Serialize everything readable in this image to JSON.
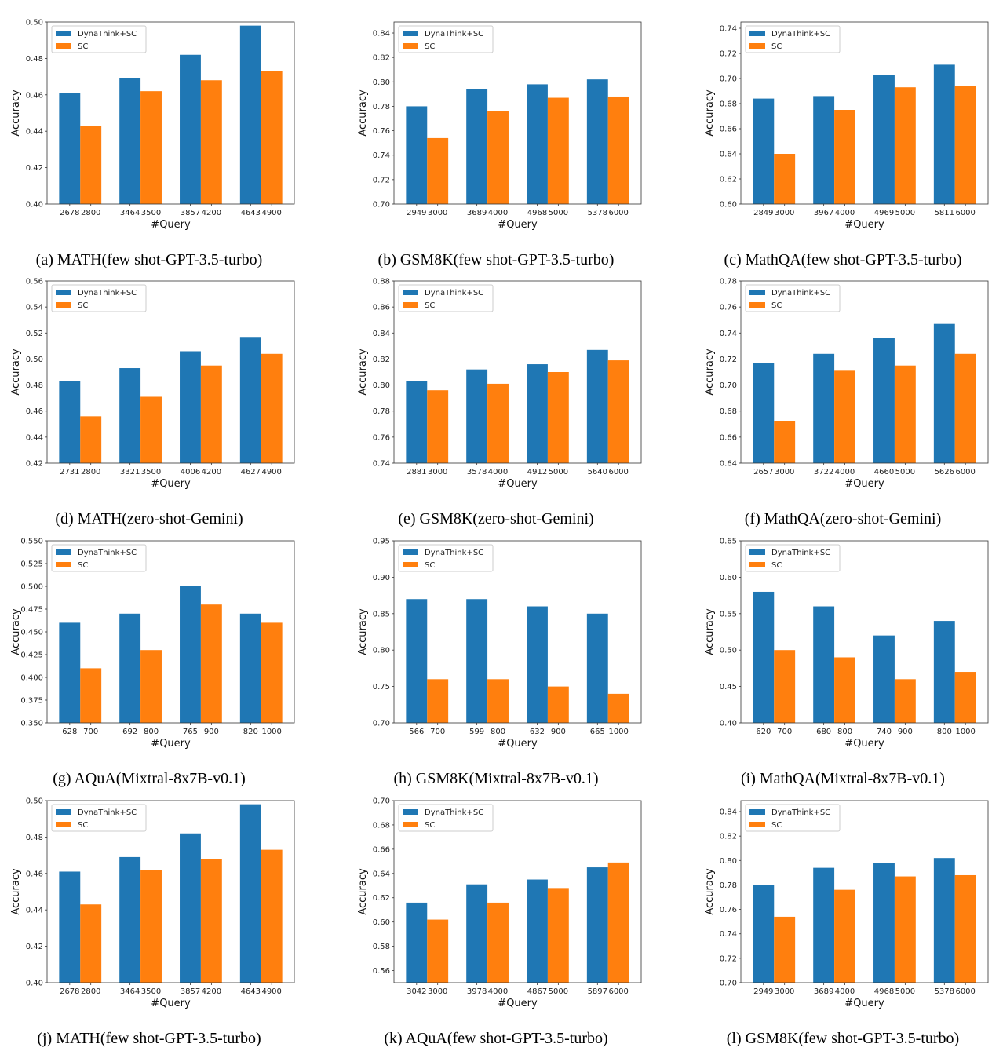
{
  "colors": {
    "dynathink": "#1f77b4",
    "sc": "#ff7f0e"
  },
  "legend": [
    "DynaThink+SC",
    "SC"
  ],
  "chart_data": [
    {
      "type": "bar",
      "title": "(a) MATH(few shot-GPT-3.5-turbo)",
      "xlabel": "#Query",
      "ylabel": "Accuracy",
      "ylim": [
        0.4,
        0.5
      ],
      "yticks": [
        "0.40",
        "0.42",
        "0.44",
        "0.46",
        "0.48",
        "0.50"
      ],
      "xticks": [
        [
          "2678",
          "2800"
        ],
        [
          "3464",
          "3500"
        ],
        [
          "3857",
          "4200"
        ],
        [
          "4643",
          "4900"
        ]
      ],
      "series": [
        {
          "name": "DynaThink+SC",
          "values": [
            0.461,
            0.469,
            0.482,
            0.498
          ]
        },
        {
          "name": "SC",
          "values": [
            0.443,
            0.462,
            0.468,
            0.473
          ]
        }
      ],
      "legend_position": "top-left"
    },
    {
      "type": "bar",
      "title": "(b) GSM8K(few shot-GPT-3.5-turbo)",
      "xlabel": "#Query",
      "ylabel": "Accuracy",
      "ylim": [
        0.7,
        0.849
      ],
      "yticks": [
        "0.70",
        "0.72",
        "0.74",
        "0.76",
        "0.78",
        "0.80",
        "0.82",
        "0.84"
      ],
      "xticks": [
        [
          "2949",
          "3000"
        ],
        [
          "3689",
          "4000"
        ],
        [
          "4968",
          "5000"
        ],
        [
          "5378",
          "6000"
        ]
      ],
      "series": [
        {
          "name": "DynaThink+SC",
          "values": [
            0.78,
            0.794,
            0.798,
            0.802
          ]
        },
        {
          "name": "SC",
          "values": [
            0.754,
            0.776,
            0.787,
            0.788
          ]
        }
      ],
      "legend_position": "top-left"
    },
    {
      "type": "bar",
      "title": "(c) MathQA(few shot-GPT-3.5-turbo)",
      "xlabel": "#Query",
      "ylabel": "Accuracy",
      "ylim": [
        0.6,
        0.745
      ],
      "yticks": [
        "0.60",
        "0.62",
        "0.64",
        "0.66",
        "0.68",
        "0.70",
        "0.72",
        "0.74"
      ],
      "xticks": [
        [
          "2849",
          "3000"
        ],
        [
          "3967",
          "4000"
        ],
        [
          "4969",
          "5000"
        ],
        [
          "5811",
          "6000"
        ]
      ],
      "series": [
        {
          "name": "DynaThink+SC",
          "values": [
            0.684,
            0.686,
            0.703,
            0.711
          ]
        },
        {
          "name": "SC",
          "values": [
            0.64,
            0.675,
            0.693,
            0.694
          ]
        }
      ],
      "legend_position": "top-left"
    },
    {
      "type": "bar",
      "title": "(d) MATH(zero-shot-Gemini)",
      "xlabel": "#Query",
      "ylabel": "Accuracy",
      "ylim": [
        0.42,
        0.56
      ],
      "yticks": [
        "0.42",
        "0.44",
        "0.46",
        "0.48",
        "0.50",
        "0.52",
        "0.54",
        "0.56"
      ],
      "xticks": [
        [
          "2731",
          "2800"
        ],
        [
          "3321",
          "3500"
        ],
        [
          "4006",
          "4200"
        ],
        [
          "4627",
          "4900"
        ]
      ],
      "series": [
        {
          "name": "DynaThink+SC",
          "values": [
            0.483,
            0.493,
            0.506,
            0.517
          ]
        },
        {
          "name": "SC",
          "values": [
            0.456,
            0.471,
            0.495,
            0.504
          ]
        }
      ],
      "legend_position": "top-left"
    },
    {
      "type": "bar",
      "title": "(e) GSM8K(zero-shot-Gemini)",
      "xlabel": "#Query",
      "ylabel": "Accuracy",
      "ylim": [
        0.74,
        0.88
      ],
      "yticks": [
        "0.74",
        "0.76",
        "0.78",
        "0.80",
        "0.82",
        "0.84",
        "0.86",
        "0.88"
      ],
      "xticks": [
        [
          "2881",
          "3000"
        ],
        [
          "3578",
          "4000"
        ],
        [
          "4912",
          "5000"
        ],
        [
          "5640",
          "6000"
        ]
      ],
      "series": [
        {
          "name": "DynaThink+SC",
          "values": [
            0.803,
            0.812,
            0.816,
            0.827
          ]
        },
        {
          "name": "SC",
          "values": [
            0.796,
            0.801,
            0.81,
            0.819
          ]
        }
      ],
      "legend_position": "top-left"
    },
    {
      "type": "bar",
      "title": "(f) MathQA(zero-shot-Gemini)",
      "xlabel": "#Query",
      "ylabel": "Accuracy",
      "ylim": [
        0.64,
        0.78
      ],
      "yticks": [
        "0.64",
        "0.66",
        "0.68",
        "0.70",
        "0.72",
        "0.74",
        "0.76",
        "0.78"
      ],
      "xticks": [
        [
          "2657",
          "3000"
        ],
        [
          "3722",
          "4000"
        ],
        [
          "4660",
          "5000"
        ],
        [
          "5626",
          "6000"
        ]
      ],
      "series": [
        {
          "name": "DynaThink+SC",
          "values": [
            0.717,
            0.724,
            0.736,
            0.747
          ]
        },
        {
          "name": "SC",
          "values": [
            0.672,
            0.711,
            0.715,
            0.724
          ]
        }
      ],
      "legend_position": "top-left"
    },
    {
      "type": "bar",
      "title": "(g) AQuA(Mixtral-8x7B-v0.1)",
      "xlabel": "#Query",
      "ylabel": "Accuracy",
      "ylim": [
        0.35,
        0.55
      ],
      "yticks": [
        "0.350",
        "0.375",
        "0.400",
        "0.425",
        "0.450",
        "0.475",
        "0.500",
        "0.525",
        "0.550"
      ],
      "xticks": [
        [
          "628",
          "700"
        ],
        [
          "692",
          "800"
        ],
        [
          "765",
          "900"
        ],
        [
          "820",
          "1000"
        ]
      ],
      "series": [
        {
          "name": "DynaThink+SC",
          "values": [
            0.46,
            0.47,
            0.5,
            0.47
          ]
        },
        {
          "name": "SC",
          "values": [
            0.41,
            0.43,
            0.48,
            0.46
          ]
        }
      ],
      "legend_position": "top-left"
    },
    {
      "type": "bar",
      "title": "(h) GSM8K(Mixtral-8x7B-v0.1)",
      "xlabel": "#Query",
      "ylabel": "Accuracy",
      "ylim": [
        0.7,
        0.95
      ],
      "yticks": [
        "0.70",
        "0.75",
        "0.80",
        "0.85",
        "0.90",
        "0.95"
      ],
      "xticks": [
        [
          "566",
          "700"
        ],
        [
          "599",
          "800"
        ],
        [
          "632",
          "900"
        ],
        [
          "665",
          "1000"
        ]
      ],
      "series": [
        {
          "name": "DynaThink+SC",
          "values": [
            0.87,
            0.87,
            0.86,
            0.85
          ]
        },
        {
          "name": "SC",
          "values": [
            0.76,
            0.76,
            0.75,
            0.74
          ]
        }
      ],
      "legend_position": "top-left"
    },
    {
      "type": "bar",
      "title": "(i) MathQA(Mixtral-8x7B-v0.1)",
      "xlabel": "#Query",
      "ylabel": "Accuracy",
      "ylim": [
        0.4,
        0.65
      ],
      "yticks": [
        "0.40",
        "0.45",
        "0.50",
        "0.55",
        "0.60",
        "0.65"
      ],
      "xticks": [
        [
          "620",
          "700"
        ],
        [
          "680",
          "800"
        ],
        [
          "740",
          "900"
        ],
        [
          "800",
          "1000"
        ]
      ],
      "series": [
        {
          "name": "DynaThink+SC",
          "values": [
            0.58,
            0.56,
            0.52,
            0.54
          ]
        },
        {
          "name": "SC",
          "values": [
            0.5,
            0.49,
            0.46,
            0.47
          ]
        }
      ],
      "legend_position": "top-left"
    },
    {
      "type": "bar",
      "title": "(j) MATH(few shot-GPT-3.5-turbo)",
      "xlabel": "#Query",
      "ylabel": "Accuracy",
      "ylim": [
        0.4,
        0.5
      ],
      "yticks": [
        "0.40",
        "0.42",
        "0.44",
        "0.46",
        "0.48",
        "0.50"
      ],
      "xticks": [
        [
          "2678",
          "2800"
        ],
        [
          "3464",
          "3500"
        ],
        [
          "3857",
          "4200"
        ],
        [
          "4643",
          "4900"
        ]
      ],
      "series": [
        {
          "name": "DynaThink+SC",
          "values": [
            0.461,
            0.469,
            0.482,
            0.498
          ]
        },
        {
          "name": "SC",
          "values": [
            0.443,
            0.462,
            0.468,
            0.473
          ]
        }
      ],
      "legend_position": "top-left"
    },
    {
      "type": "bar",
      "title": "(k) AQuA(few shot-GPT-3.5-turbo)",
      "xlabel": "#Query",
      "ylabel": "Accuracy",
      "ylim": [
        0.55,
        0.7
      ],
      "yticks": [
        "0.56",
        "0.58",
        "0.60",
        "0.62",
        "0.64",
        "0.66",
        "0.68",
        "0.70"
      ],
      "xticks": [
        [
          "3042",
          "3000"
        ],
        [
          "3978",
          "4000"
        ],
        [
          "4867",
          "5000"
        ],
        [
          "5897",
          "6000"
        ]
      ],
      "series": [
        {
          "name": "DynaThink+SC",
          "values": [
            0.616,
            0.631,
            0.635,
            0.645
          ]
        },
        {
          "name": "SC",
          "values": [
            0.602,
            0.616,
            0.628,
            0.649
          ]
        }
      ],
      "legend_position": "top-left"
    },
    {
      "type": "bar",
      "title": "(l) GSM8K(few shot-GPT-3.5-turbo)",
      "xlabel": "#Query",
      "ylabel": "Accuracy",
      "ylim": [
        0.7,
        0.849
      ],
      "yticks": [
        "0.70",
        "0.72",
        "0.74",
        "0.76",
        "0.78",
        "0.80",
        "0.82",
        "0.84"
      ],
      "xticks": [
        [
          "2949",
          "3000"
        ],
        [
          "3689",
          "4000"
        ],
        [
          "4968",
          "5000"
        ],
        [
          "5378",
          "6000"
        ]
      ],
      "series": [
        {
          "name": "DynaThink+SC",
          "values": [
            0.78,
            0.794,
            0.798,
            0.802
          ]
        },
        {
          "name": "SC",
          "values": [
            0.754,
            0.776,
            0.787,
            0.788
          ]
        }
      ],
      "legend_position": "top-left"
    }
  ]
}
